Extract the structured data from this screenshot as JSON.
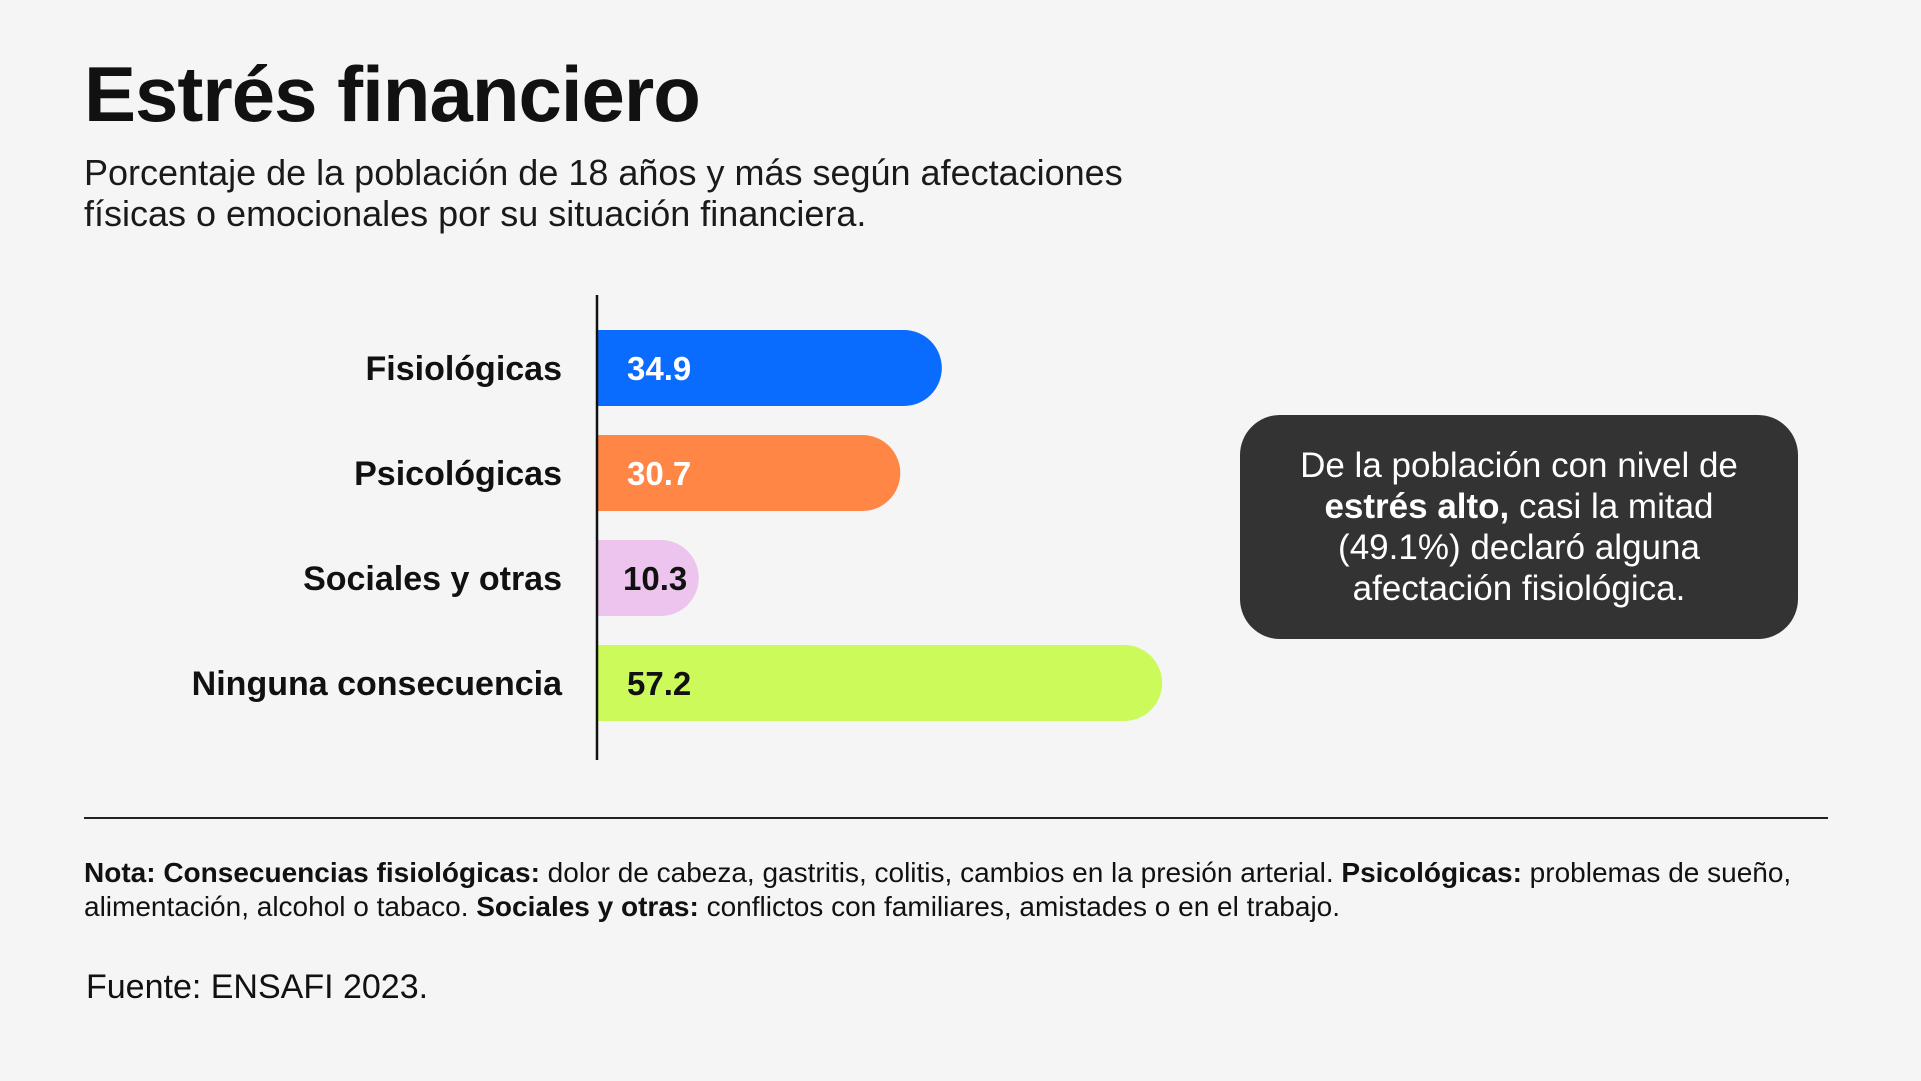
{
  "title": "Estrés financiero",
  "subtitle": "Porcentaje de la población de 18 años y más según afectaciones físicas o emocionales por su situación financiera.",
  "chart_data": {
    "type": "bar",
    "orientation": "horizontal",
    "categories": [
      "Fisiológicas",
      "Psicológicas",
      "Sociales y otras",
      "Ninguna consecuencia"
    ],
    "values": [
      34.9,
      30.7,
      10.3,
      57.2
    ],
    "value_labels": [
      "34.9",
      "30.7",
      "10.3",
      "57.2"
    ],
    "colors": [
      "#0a6cff",
      "#ff8645",
      "#ecc4ed",
      "#ccfa5a"
    ],
    "label_colors": [
      "#ffffff",
      "#ffffff",
      "#111111",
      "#111111"
    ],
    "title": "",
    "xlabel": "",
    "ylabel": "",
    "grid": false,
    "legend": "none"
  },
  "callout": {
    "pre": "De la población con nivel de ",
    "bold": "estrés alto,",
    "post": " casi la mitad (49.1%) declaró alguna afectación fisiológica."
  },
  "note": {
    "label1": "Nota: Consecuencias fisiológicas:",
    "text1": " dolor de cabeza, gastritis, colitis, cambios en la presión arterial. ",
    "label2": "Psicológicas:",
    "text2": " problemas de sueño, alimentación, alcohol o tabaco. ",
    "label3": "Sociales y otras:",
    "text3": " conflictos con familiares, amistades o en el trabajo."
  },
  "source": "Fuente: ENSAFI 2023."
}
